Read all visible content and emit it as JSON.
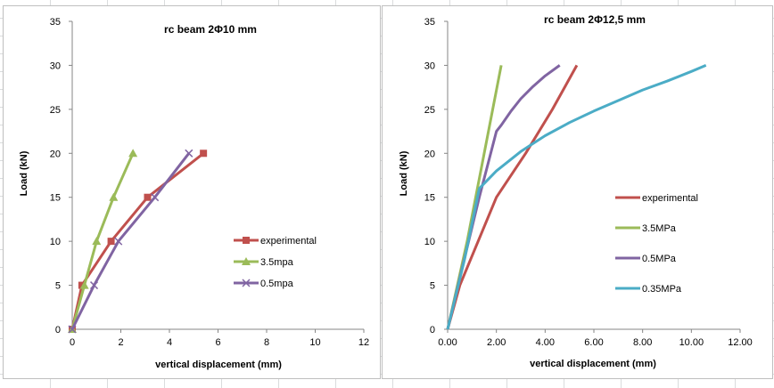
{
  "chart_data": [
    {
      "type": "line",
      "title": "rc beam 2Φ10 mm",
      "xlabel": "vertical displacement (mm)",
      "ylabel": "Load (kN)",
      "xlim": [
        0,
        12
      ],
      "ylim": [
        0,
        35
      ],
      "xticks": [
        "0",
        "2",
        "4",
        "6",
        "8",
        "10",
        "12"
      ],
      "yticks": [
        "0",
        "5",
        "10",
        "15",
        "20",
        "25",
        "30",
        "35"
      ],
      "grid": false,
      "legend_position": "right",
      "series": [
        {
          "name": "experimental",
          "color": "#c0504d",
          "marker": "square",
          "x": [
            0,
            0.4,
            1.6,
            3.1,
            5.4
          ],
          "y": [
            0,
            5,
            10,
            15,
            20
          ]
        },
        {
          "name": "3.5mpa",
          "color": "#9bbb59",
          "marker": "triangle",
          "x": [
            0,
            0.5,
            1.0,
            1.7,
            2.5
          ],
          "y": [
            0,
            5,
            10,
            15,
            20
          ]
        },
        {
          "name": "0.5mpa",
          "color": "#8064a2",
          "marker": "x",
          "x": [
            0,
            0.9,
            1.9,
            3.4,
            4.8
          ],
          "y": [
            0,
            5,
            10,
            15,
            20
          ]
        }
      ]
    },
    {
      "type": "line",
      "title": "rc beam 2Φ12,5 mm",
      "xlabel": "vertical displacement (mm)",
      "ylabel": "Load (kN)",
      "xlim": [
        0,
        12
      ],
      "ylim": [
        0,
        35
      ],
      "xticks": [
        "0.00",
        "2.00",
        "4.00",
        "6.00",
        "8.00",
        "10.00",
        "12.00"
      ],
      "yticks": [
        "0",
        "5",
        "10",
        "15",
        "20",
        "25",
        "30",
        "35"
      ],
      "grid": false,
      "legend_position": "right",
      "series": [
        {
          "name": "experimental",
          "color": "#c0504d",
          "marker": "none",
          "x": [
            0,
            0.5,
            2.0,
            3.2,
            4.3,
            5.3
          ],
          "y": [
            0,
            5,
            15,
            20,
            25,
            30
          ]
        },
        {
          "name": "3.5MPa",
          "color": "#9bbb59",
          "marker": "none",
          "x": [
            0,
            0.8,
            1.5,
            2.2
          ],
          "y": [
            0,
            10,
            20,
            30
          ]
        },
        {
          "name": "0.5MPa",
          "color": "#8064a2",
          "marker": "none",
          "x": [
            0,
            0.6,
            1.3,
            2.0,
            2.2,
            2.6,
            3.0,
            3.5,
            4.0,
            4.6
          ],
          "y": [
            0,
            7,
            15,
            22.5,
            23.2,
            24.8,
            26.2,
            27.6,
            28.8,
            30
          ]
        },
        {
          "name": "0.35MPa",
          "color": "#4bacc6",
          "marker": "none",
          "x": [
            0,
            0.7,
            1.3,
            2.0,
            3.0,
            4.0,
            5.0,
            6.0,
            7.0,
            8.0,
            9.0,
            10.0,
            10.6
          ],
          "y": [
            0,
            8,
            16,
            18,
            20.2,
            22,
            23.5,
            24.8,
            26,
            27.2,
            28.2,
            29.3,
            30
          ]
        }
      ]
    }
  ]
}
